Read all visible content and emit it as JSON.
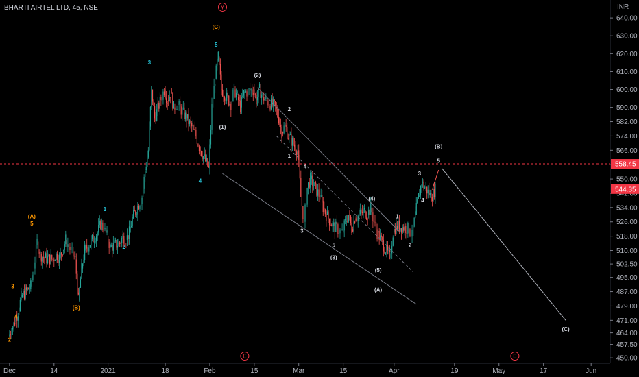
{
  "chart_data": {
    "type": "candlestick",
    "title": "BHARTI AIRTEL LTD, 45, NSE",
    "currency": "INR",
    "ylim": [
      447,
      650
    ],
    "y_ticks": [
      450,
      457.5,
      464,
      471,
      479,
      487,
      495,
      502.5,
      510,
      518,
      526,
      534,
      542,
      550,
      558,
      566,
      574,
      582,
      590,
      600,
      610,
      620,
      630,
      640
    ],
    "y_tick_labels": [
      "450.00",
      "457.50",
      "464.00",
      "471.00",
      "479.00",
      "487.00",
      "495.00",
      "502.50",
      "510.00",
      "518.00",
      "526.00",
      "534.00",
      "542.00",
      "550.00",
      "558.00",
      "566.00",
      "574.00",
      "582.00",
      "590.00",
      "600.00",
      "610.00",
      "620.00",
      "630.00",
      "640.00"
    ],
    "x_ticks": [
      "Dec",
      "14",
      "2021",
      "18",
      "Feb",
      "15",
      "Mar",
      "15",
      "Apr",
      "19",
      "May",
      "17",
      "Jun"
    ],
    "price_labels": [
      {
        "value": 558.45,
        "text": "558.45",
        "color": "#f23645",
        "dashed": true
      },
      {
        "value": 544.35,
        "text": "544.35",
        "color": "#f23645",
        "dashed": false
      }
    ],
    "series": [
      {
        "values": [
          {
            "date": "2020-11-30",
            "price": 466
          },
          {
            "date": "2020-12-01",
            "price": 470
          },
          {
            "date": "2020-12-02",
            "price": 476
          },
          {
            "date": "2020-12-03",
            "price": 484
          },
          {
            "date": "2020-12-04",
            "price": 490
          },
          {
            "date": "2020-12-07",
            "price": 500
          },
          {
            "date": "2020-12-08",
            "price": 515
          },
          {
            "date": "2020-12-09",
            "price": 508
          },
          {
            "date": "2020-12-10",
            "price": 506
          },
          {
            "date": "2020-12-11",
            "price": 505
          },
          {
            "date": "2020-12-14",
            "price": 508
          },
          {
            "date": "2020-12-15",
            "price": 506
          },
          {
            "date": "2020-12-16",
            "price": 510
          },
          {
            "date": "2020-12-17",
            "price": 516
          },
          {
            "date": "2020-12-18",
            "price": 505
          },
          {
            "date": "2020-12-21",
            "price": 482
          },
          {
            "date": "2020-12-22",
            "price": 500
          },
          {
            "date": "2020-12-23",
            "price": 510
          },
          {
            "date": "2020-12-24",
            "price": 520
          },
          {
            "date": "2020-12-28",
            "price": 525
          },
          {
            "date": "2020-12-29",
            "price": 522
          },
          {
            "date": "2020-12-30",
            "price": 518
          },
          {
            "date": "2020-12-31",
            "price": 512
          },
          {
            "date": "2021-01-01",
            "price": 514
          },
          {
            "date": "2021-01-04",
            "price": 518
          },
          {
            "date": "2021-01-05",
            "price": 516
          },
          {
            "date": "2021-01-06",
            "price": 520
          },
          {
            "date": "2021-01-07",
            "price": 528
          },
          {
            "date": "2021-01-08",
            "price": 540
          },
          {
            "date": "2021-01-11",
            "price": 555
          },
          {
            "date": "2021-01-12",
            "price": 566
          },
          {
            "date": "2021-01-13",
            "price": 600
          },
          {
            "date": "2021-01-14",
            "price": 584
          },
          {
            "date": "2021-01-15",
            "price": 600
          },
          {
            "date": "2021-01-18",
            "price": 594
          },
          {
            "date": "2021-01-19",
            "price": 598
          },
          {
            "date": "2021-01-20",
            "price": 590
          },
          {
            "date": "2021-01-21",
            "price": 592
          },
          {
            "date": "2021-01-22",
            "price": 584
          },
          {
            "date": "2021-01-25",
            "price": 578
          },
          {
            "date": "2021-01-27",
            "price": 574
          },
          {
            "date": "2021-01-28",
            "price": 568
          },
          {
            "date": "2021-01-29",
            "price": 556
          },
          {
            "date": "2021-02-01",
            "price": 590
          },
          {
            "date": "2021-02-02",
            "price": 606
          },
          {
            "date": "2021-02-03",
            "price": 618
          },
          {
            "date": "2021-02-04",
            "price": 600
          },
          {
            "date": "2021-02-05",
            "price": 592
          },
          {
            "date": "2021-02-08",
            "price": 600
          },
          {
            "date": "2021-02-09",
            "price": 596
          },
          {
            "date": "2021-02-10",
            "price": 590
          },
          {
            "date": "2021-02-11",
            "price": 598
          },
          {
            "date": "2021-02-12",
            "price": 600
          },
          {
            "date": "2021-02-15",
            "price": 594
          },
          {
            "date": "2021-02-16",
            "price": 600
          },
          {
            "date": "2021-02-17",
            "price": 596
          },
          {
            "date": "2021-02-18",
            "price": 594
          },
          {
            "date": "2021-02-19",
            "price": 590
          },
          {
            "date": "2021-02-22",
            "price": 584
          },
          {
            "date": "2021-02-23",
            "price": 576
          },
          {
            "date": "2021-02-24",
            "price": 580
          },
          {
            "date": "2021-02-25",
            "price": 574
          },
          {
            "date": "2021-02-26",
            "price": 566
          },
          {
            "date": "2021-03-01",
            "price": 540
          },
          {
            "date": "2021-03-02",
            "price": 526
          },
          {
            "date": "2021-03-03",
            "price": 545
          },
          {
            "date": "2021-03-04",
            "price": 550
          },
          {
            "date": "2021-03-05",
            "price": 540
          },
          {
            "date": "2021-03-08",
            "price": 534
          },
          {
            "date": "2021-03-09",
            "price": 530
          },
          {
            "date": "2021-03-10",
            "price": 524
          },
          {
            "date": "2021-03-12",
            "price": 520
          },
          {
            "date": "2021-03-15",
            "price": 526
          },
          {
            "date": "2021-03-16",
            "price": 530
          },
          {
            "date": "2021-03-17",
            "price": 522
          },
          {
            "date": "2021-03-18",
            "price": 528
          },
          {
            "date": "2021-03-19",
            "price": 532
          },
          {
            "date": "2021-03-22",
            "price": 530
          },
          {
            "date": "2021-03-23",
            "price": 534
          },
          {
            "date": "2021-03-24",
            "price": 526
          },
          {
            "date": "2021-03-25",
            "price": 520
          },
          {
            "date": "2021-03-26",
            "price": 506
          },
          {
            "date": "2021-03-30",
            "price": 520
          },
          {
            "date": "2021-03-31",
            "price": 524
          },
          {
            "date": "2021-04-01",
            "price": 522
          },
          {
            "date": "2021-04-05",
            "price": 518
          },
          {
            "date": "2021-04-06",
            "price": 530
          },
          {
            "date": "2021-04-07",
            "price": 540
          },
          {
            "date": "2021-04-08",
            "price": 548
          },
          {
            "date": "2021-04-09",
            "price": 540
          },
          {
            "date": "2021-04-12",
            "price": 544
          }
        ]
      }
    ],
    "annotations": [
      {
        "text": "2",
        "date": "2020-11-30",
        "price": 459,
        "color": "#ff9800"
      },
      {
        "text": "3",
        "date": "2020-12-01",
        "price": 489,
        "color": "#ff9800"
      },
      {
        "text": "4",
        "date": "2020-12-02",
        "price": 472,
        "color": "#ff9800"
      },
      {
        "text": "(A)",
        "date": "2020-12-07",
        "price": 528,
        "color": "#ff9800"
      },
      {
        "text": "5",
        "date": "2020-12-07",
        "price": 524,
        "color": "#ff9800"
      },
      {
        "text": "(B)",
        "date": "2020-12-21",
        "price": 477,
        "color": "#ff9800"
      },
      {
        "text": "2",
        "date": "2021-01-05",
        "price": 511,
        "color": "#26c6da"
      },
      {
        "text": "1",
        "date": "2020-12-30",
        "price": 532,
        "color": "#26c6da"
      },
      {
        "text": "3",
        "date": "2021-01-13",
        "price": 614,
        "color": "#26c6da"
      },
      {
        "text": "4",
        "date": "2021-01-29",
        "price": 548,
        "color": "#26c6da"
      },
      {
        "text": "5",
        "date": "2021-02-03",
        "price": 624,
        "color": "#26c6da"
      },
      {
        "text": "(C)",
        "date": "2021-02-03",
        "price": 634,
        "color": "#ff9800"
      },
      {
        "text": "(1)",
        "date": "2021-02-05",
        "price": 578,
        "color": "#d1d4dc"
      },
      {
        "text": "(2)",
        "date": "2021-02-16",
        "price": 607,
        "color": "#d1d4dc"
      },
      {
        "text": "1",
        "date": "2021-02-26",
        "price": 562,
        "color": "#d1d4dc"
      },
      {
        "text": "2",
        "date": "2021-02-26",
        "price": 588,
        "color": "#d1d4dc"
      },
      {
        "text": "3",
        "date": "2021-03-02",
        "price": 520,
        "color": "#d1d4dc"
      },
      {
        "text": "4",
        "date": "2021-03-03",
        "price": 556,
        "color": "#d1d4dc"
      },
      {
        "text": "5",
        "date": "2021-03-12",
        "price": 512,
        "color": "#d1d4dc"
      },
      {
        "text": "(3)",
        "date": "2021-03-12",
        "price": 505,
        "color": "#d1d4dc"
      },
      {
        "text": "(4)",
        "date": "2021-03-24",
        "price": 538,
        "color": "#d1d4dc"
      },
      {
        "text": "(5)",
        "date": "2021-03-26",
        "price": 498,
        "color": "#d1d4dc"
      },
      {
        "text": "(A)",
        "date": "2021-03-26",
        "price": 487,
        "color": "#d1d4dc"
      },
      {
        "text": "1",
        "date": "2021-04-01",
        "price": 528,
        "color": "#d1d4dc"
      },
      {
        "text": "2",
        "date": "2021-04-05",
        "price": 512,
        "color": "#d1d4dc"
      },
      {
        "text": "3",
        "date": "2021-04-08",
        "price": 552,
        "color": "#d1d4dc"
      },
      {
        "text": "4",
        "date": "2021-04-09",
        "price": 537,
        "color": "#d1d4dc"
      },
      {
        "text": "5",
        "date": "2021-04-14",
        "price": 559,
        "color": "#d1d4dc"
      },
      {
        "text": "(B)",
        "date": "2021-04-14",
        "price": 567,
        "color": "#d1d4dc"
      },
      {
        "text": "(C)",
        "date": "2021-05-24",
        "price": 465,
        "color": "#d1d4dc"
      }
    ],
    "circle_markers": [
      {
        "text": "Y",
        "date": "2021-02-05",
        "price": 646,
        "color": "#f23645"
      },
      {
        "text": "E",
        "date": "2021-02-12",
        "price": 451,
        "color": "#f23645"
      },
      {
        "text": "E",
        "date": "2021-05-08",
        "price": 451,
        "color": "#f23645"
      }
    ],
    "colors": {
      "up": "#26a69a",
      "down": "#ef5350",
      "background": "#000000",
      "channel": "#787b86",
      "projection": "#b2b5be"
    }
  }
}
